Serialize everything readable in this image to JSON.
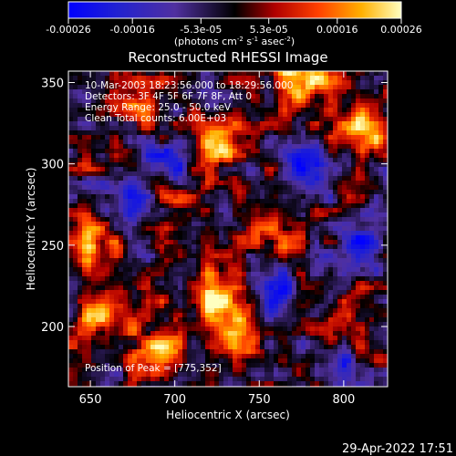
{
  "chart_data": {
    "type": "heatmap",
    "title": "Reconstructed RHESSI Image",
    "xlabel": "Heliocentric X (arcsec)",
    "ylabel": "Heliocentric Y (arcsec)",
    "xlim": [
      637,
      826
    ],
    "ylim": [
      163,
      357
    ],
    "x_ticks": [
      650,
      700,
      750,
      800
    ],
    "y_ticks": [
      200,
      250,
      300,
      350
    ],
    "colorbar": {
      "min": -0.00026,
      "max": 0.00026,
      "tick_values": [
        -0.00026,
        -0.00016,
        -5.3e-05,
        5.3e-05,
        0.00016,
        0.00026
      ],
      "tick_labels": [
        "-0.00026",
        "-0.00016",
        "-5.3e-05",
        "5.3e-05",
        "0.00016",
        "0.00026"
      ],
      "unit_label": "(photons cm",
      "unit_exp1": "-2",
      "unit_mid": " s",
      "unit_exp2": "-1",
      "unit_mid2": " asec",
      "unit_exp3": "-2",
      "unit_end": ")"
    },
    "grid": false,
    "annotations": [
      "10-Mar-2003 18:23:56.000 to 18:29:56.000",
      "Detectors: 3F 4F 5F 6F 7F 8F, Att 0",
      "Energy Range: 25.0 - 50.0 keV",
      "Clean     Total counts: 6.00E+03"
    ],
    "peak_label": "Position of Peak = [775,352]",
    "bright_regions": [
      {
        "x": 725,
        "y": 315,
        "value": 0.00024
      },
      {
        "x": 728,
        "y": 215,
        "value": 0.00026
      },
      {
        "x": 735,
        "y": 190,
        "value": 0.00022
      },
      {
        "x": 650,
        "y": 250,
        "value": 0.0002
      },
      {
        "x": 660,
        "y": 205,
        "value": 0.00018
      },
      {
        "x": 810,
        "y": 320,
        "value": 0.00022
      },
      {
        "x": 775,
        "y": 352,
        "value": 0.00026
      },
      {
        "x": 680,
        "y": 335,
        "value": 0.00016
      },
      {
        "x": 760,
        "y": 260,
        "value": 0.00016
      },
      {
        "x": 700,
        "y": 280,
        "value": 0.00014
      },
      {
        "x": 690,
        "y": 185,
        "value": 0.00016
      },
      {
        "x": 800,
        "y": 200,
        "value": 0.00014
      }
    ],
    "cold_regions": [
      {
        "x": 700,
        "y": 300,
        "value": -0.0002
      },
      {
        "x": 780,
        "y": 300,
        "value": -0.00022
      },
      {
        "x": 760,
        "y": 220,
        "value": -0.00018
      },
      {
        "x": 670,
        "y": 280,
        "value": -0.00016
      },
      {
        "x": 810,
        "y": 250,
        "value": -0.00016
      },
      {
        "x": 800,
        "y": 180,
        "value": -0.00014
      }
    ]
  },
  "footer": {
    "timestamp": "29-Apr-2022 17:51"
  }
}
